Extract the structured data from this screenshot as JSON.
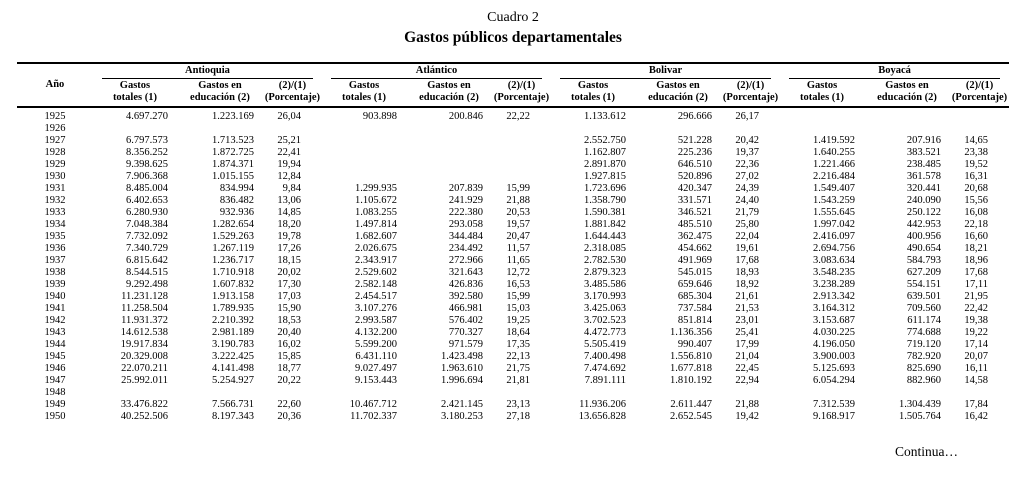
{
  "title": "Cuadro 2",
  "subtitle": "Gastos públicos departamentales",
  "continuation": "Continua…",
  "table": {
    "year_header": "Año",
    "departments": [
      "Antioquia",
      "Atlántico",
      "Bolivar",
      "Boyacá"
    ],
    "col_headers": [
      [
        "Gastos",
        "totales (1)"
      ],
      [
        "Gastos en",
        "educación (2)"
      ],
      [
        "(2)/(1)",
        "(Porcentaje)"
      ]
    ],
    "rows": [
      {
        "year": "1925",
        "cells": [
          "4.697.270",
          "1.223.169",
          "26,04",
          "903.898",
          "200.846",
          "22,22",
          "1.133.612",
          "296.666",
          "26,17",
          "",
          "",
          ""
        ]
      },
      {
        "year": "1926",
        "cells": [
          "",
          "",
          "",
          "",
          "",
          "",
          "",
          "",
          "",
          "",
          "",
          ""
        ]
      },
      {
        "year": "1927",
        "cells": [
          "6.797.573",
          "1.713.523",
          "25,21",
          "",
          "",
          "",
          "2.552.750",
          "521.228",
          "20,42",
          "1.419.592",
          "207.916",
          "14,65"
        ]
      },
      {
        "year": "1928",
        "cells": [
          "8.356.252",
          "1.872.725",
          "22,41",
          "",
          "",
          "",
          "1.162.807",
          "225.236",
          "19,37",
          "1.640.255",
          "383.521",
          "23,38"
        ]
      },
      {
        "year": "1929",
        "cells": [
          "9.398.625",
          "1.874.371",
          "19,94",
          "",
          "",
          "",
          "2.891.870",
          "646.510",
          "22,36",
          "1.221.466",
          "238.485",
          "19,52"
        ]
      },
      {
        "year": "1930",
        "cells": [
          "7.906.368",
          "1.015.155",
          "12,84",
          "",
          "",
          "",
          "1.927.815",
          "520.896",
          "27,02",
          "2.216.484",
          "361.578",
          "16,31"
        ]
      },
      {
        "year": "1931",
        "cells": [
          "8.485.004",
          "834.994",
          "9,84",
          "1.299.935",
          "207.839",
          "15,99",
          "1.723.696",
          "420.347",
          "24,39",
          "1.549.407",
          "320.441",
          "20,68"
        ]
      },
      {
        "year": "1932",
        "cells": [
          "6.402.653",
          "836.482",
          "13,06",
          "1.105.672",
          "241.929",
          "21,88",
          "1.358.790",
          "331.571",
          "24,40",
          "1.543.259",
          "240.090",
          "15,56"
        ]
      },
      {
        "year": "1933",
        "cells": [
          "6.280.930",
          "932.936",
          "14,85",
          "1.083.255",
          "222.380",
          "20,53",
          "1.590.381",
          "346.521",
          "21,79",
          "1.555.645",
          "250.122",
          "16,08"
        ]
      },
      {
        "year": "1934",
        "cells": [
          "7.048.384",
          "1.282.654",
          "18,20",
          "1.497.814",
          "293.058",
          "19,57",
          "1.881.842",
          "485.510",
          "25,80",
          "1.997.042",
          "442.953",
          "22,18"
        ]
      },
      {
        "year": "1935",
        "cells": [
          "7.732.092",
          "1.529.263",
          "19,78",
          "1.682.607",
          "344.484",
          "20,47",
          "1.644.443",
          "362.475",
          "22,04",
          "2.416.097",
          "400.956",
          "16,60"
        ]
      },
      {
        "year": "1936",
        "cells": [
          "7.340.729",
          "1.267.119",
          "17,26",
          "2.026.675",
          "234.492",
          "11,57",
          "2.318.085",
          "454.662",
          "19,61",
          "2.694.756",
          "490.654",
          "18,21"
        ]
      },
      {
        "year": "1937",
        "cells": [
          "6.815.642",
          "1.236.717",
          "18,15",
          "2.343.917",
          "272.966",
          "11,65",
          "2.782.530",
          "491.969",
          "17,68",
          "3.083.634",
          "584.793",
          "18,96"
        ]
      },
      {
        "year": "1938",
        "cells": [
          "8.544.515",
          "1.710.918",
          "20,02",
          "2.529.602",
          "321.643",
          "12,72",
          "2.879.323",
          "545.015",
          "18,93",
          "3.548.235",
          "627.209",
          "17,68"
        ]
      },
      {
        "year": "1939",
        "cells": [
          "9.292.498",
          "1.607.832",
          "17,30",
          "2.582.148",
          "426.836",
          "16,53",
          "3.485.586",
          "659.646",
          "18,92",
          "3.238.289",
          "554.151",
          "17,11"
        ]
      },
      {
        "year": "1940",
        "cells": [
          "11.231.128",
          "1.913.158",
          "17,03",
          "2.454.517",
          "392.580",
          "15,99",
          "3.170.993",
          "685.304",
          "21,61",
          "2.913.342",
          "639.501",
          "21,95"
        ]
      },
      {
        "year": "1941",
        "cells": [
          "11.258.504",
          "1.789.935",
          "15,90",
          "3.107.276",
          "466.981",
          "15,03",
          "3.425.063",
          "737.584",
          "21,53",
          "3.164.312",
          "709.560",
          "22,42"
        ]
      },
      {
        "year": "1942",
        "cells": [
          "11.931.372",
          "2.210.392",
          "18,53",
          "2.993.587",
          "576.402",
          "19,25",
          "3.702.523",
          "851.814",
          "23,01",
          "3.153.687",
          "611.174",
          "19,38"
        ]
      },
      {
        "year": "1943",
        "cells": [
          "14.612.538",
          "2.981.189",
          "20,40",
          "4.132.200",
          "770.327",
          "18,64",
          "4.472.773",
          "1.136.356",
          "25,41",
          "4.030.225",
          "774.688",
          "19,22"
        ]
      },
      {
        "year": "1944",
        "cells": [
          "19.917.834",
          "3.190.783",
          "16,02",
          "5.599.200",
          "971.579",
          "17,35",
          "5.505.419",
          "990.407",
          "17,99",
          "4.196.050",
          "719.120",
          "17,14"
        ]
      },
      {
        "year": "1945",
        "cells": [
          "20.329.008",
          "3.222.425",
          "15,85",
          "6.431.110",
          "1.423.498",
          "22,13",
          "7.400.498",
          "1.556.810",
          "21,04",
          "3.900.003",
          "782.920",
          "20,07"
        ]
      },
      {
        "year": "1946",
        "cells": [
          "22.070.211",
          "4.141.498",
          "18,77",
          "9.027.497",
          "1.963.610",
          "21,75",
          "7.474.692",
          "1.677.818",
          "22,45",
          "5.125.693",
          "825.690",
          "16,11"
        ]
      },
      {
        "year": "1947",
        "cells": [
          "25.992.011",
          "5.254.927",
          "20,22",
          "9.153.443",
          "1.996.694",
          "21,81",
          "7.891.111",
          "1.810.192",
          "22,94",
          "6.054.294",
          "882.960",
          "14,58"
        ]
      },
      {
        "year": "1948",
        "cells": [
          "",
          "",
          "",
          "",
          "",
          "",
          "",
          "",
          "",
          "",
          "",
          ""
        ]
      },
      {
        "year": "1949",
        "cells": [
          "33.476.822",
          "7.566.731",
          "22,60",
          "10.467.712",
          "2.421.145",
          "23,13",
          "11.936.206",
          "2.611.447",
          "21,88",
          "7.312.539",
          "1.304.439",
          "17,84"
        ]
      },
      {
        "year": "1950",
        "cells": [
          "40.252.506",
          "8.197.343",
          "20,36",
          "11.702.337",
          "3.180.253",
          "27,18",
          "13.656.828",
          "2.652.545",
          "19,42",
          "9.168.917",
          "1.505.764",
          "16,42"
        ]
      }
    ]
  }
}
